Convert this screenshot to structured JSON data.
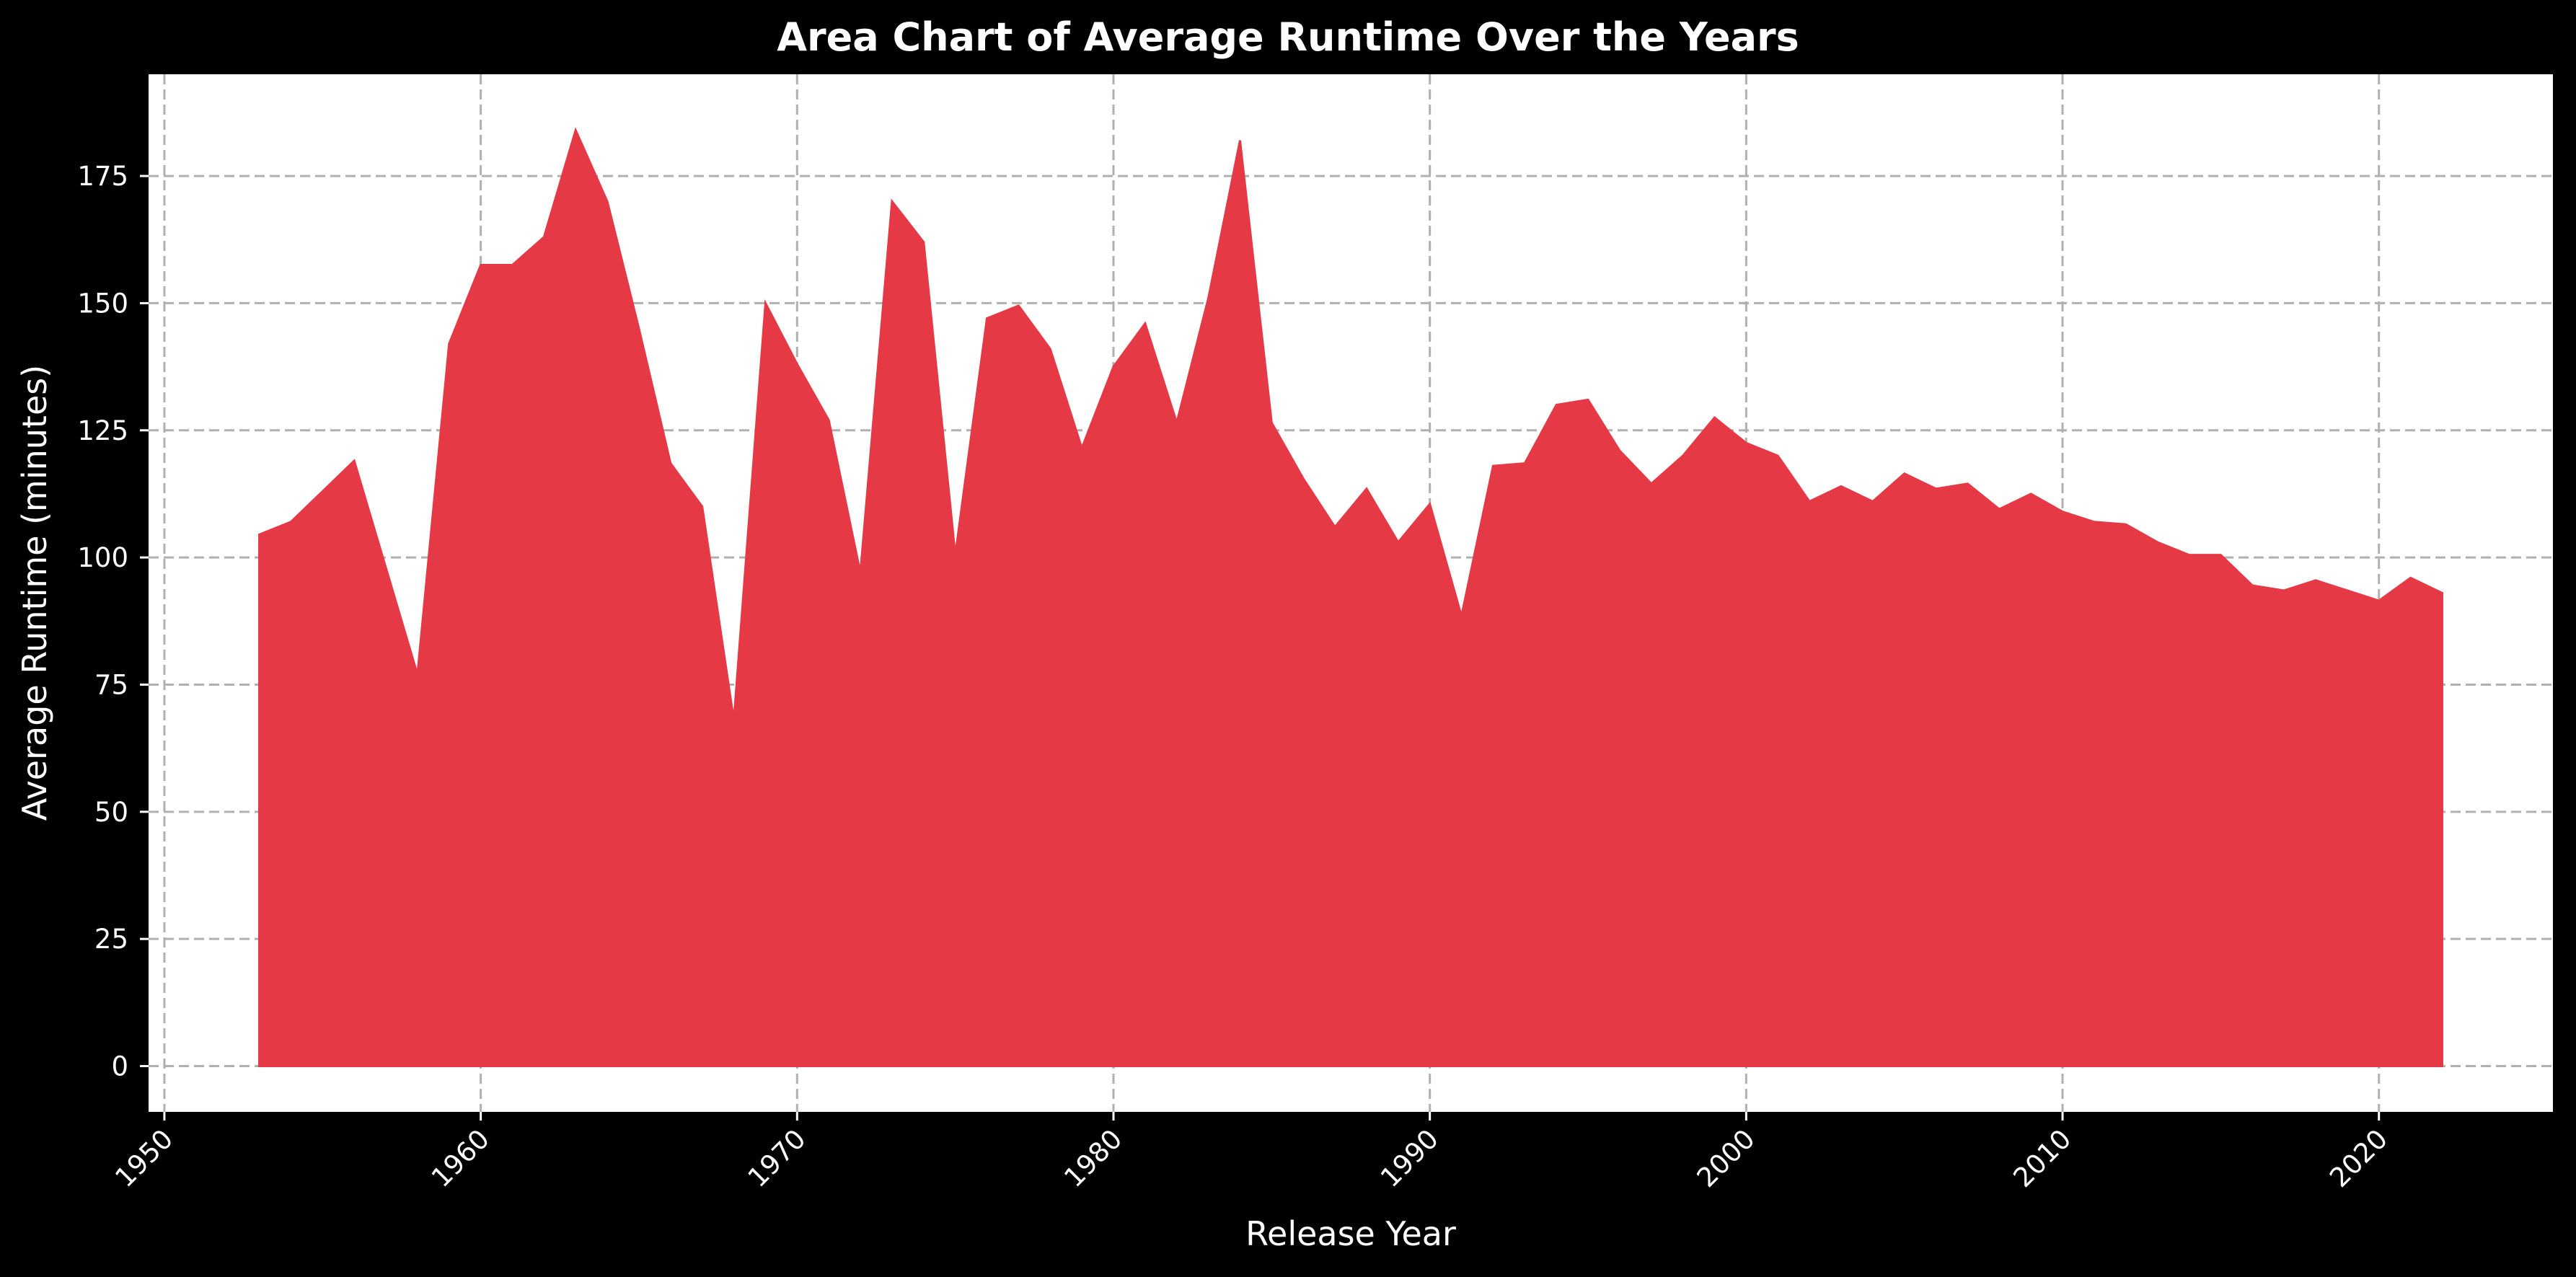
{
  "chart_data": {
    "type": "area",
    "title": "Area Chart of Average Runtime Over the Years",
    "xlabel": "Release Year",
    "ylabel": "Average Runtime (minutes)",
    "xlim": [
      1949.5,
      2025.5
    ],
    "ylim": [
      -9,
      195
    ],
    "x_ticks": [
      1950,
      1960,
      1970,
      1980,
      1990,
      2000,
      2010,
      2020
    ],
    "y_ticks": [
      0,
      25,
      50,
      75,
      100,
      125,
      150,
      175
    ],
    "grid": true,
    "colors": {
      "fill": "#e63946",
      "background": "#000000",
      "plot_background": "#ffffff",
      "grid": "#b0b0b0",
      "text": "#ffffff"
    },
    "x": [
      1953,
      1954,
      1955,
      1956,
      1957,
      1958,
      1959,
      1960,
      1961,
      1962,
      1963,
      1964,
      1965,
      1966,
      1967,
      1968,
      1969,
      1970,
      1971,
      1972,
      1973,
      1974,
      1975,
      1976,
      1977,
      1978,
      1979,
      1980,
      1981,
      1982,
      1983,
      1984,
      1985,
      1986,
      1987,
      1988,
      1989,
      1990,
      1991,
      1992,
      1993,
      1994,
      1995,
      1996,
      1997,
      1998,
      1999,
      2000,
      2001,
      2002,
      2003,
      2004,
      2005,
      2006,
      2007,
      2008,
      2009,
      2010,
      2011,
      2012,
      2013,
      2014,
      2015,
      2016,
      2017,
      2018,
      2019,
      2020,
      2021,
      2022
    ],
    "values": [
      104.5,
      107,
      113,
      119,
      98,
      77,
      142,
      157.5,
      157.5,
      163,
      184,
      170,
      145,
      118.5,
      110,
      68,
      150,
      138,
      127,
      97,
      170,
      162,
      100.5,
      147,
      149.5,
      141,
      121.5,
      137.5,
      146,
      126.5,
      151,
      182,
      126.5,
      115.5,
      106,
      113.5,
      103,
      110.5,
      88.5,
      118,
      118.5,
      130,
      131,
      121,
      114.5,
      120,
      127.5,
      122.5,
      120,
      111,
      114,
      111,
      116.5,
      113.5,
      114.5,
      109.5,
      112.5,
      109,
      107,
      106.5,
      103,
      100.5,
      100.5,
      94.5,
      93.5,
      95.5,
      93.5,
      91.5,
      96,
      93
    ]
  }
}
